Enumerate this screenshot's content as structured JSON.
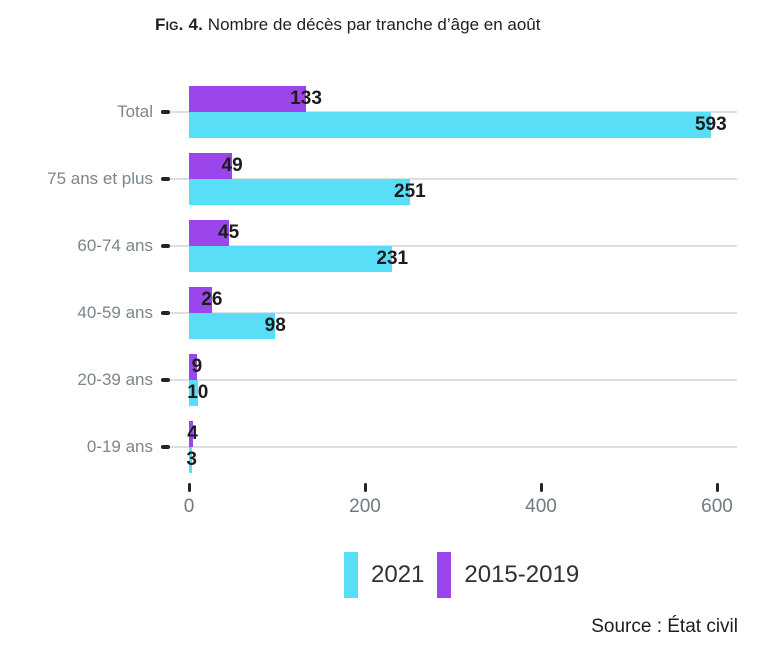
{
  "figure": {
    "title_prefix": "Fig. 4.",
    "title_text": " Nombre de décès par tranche d’âge en août",
    "source": "Source : État civil"
  },
  "legend": {
    "items": [
      {
        "label": "2021",
        "color": "#59DEF7"
      },
      {
        "label": "2015-2019",
        "color": "#9B45EC"
      }
    ]
  },
  "chart_data": {
    "type": "bar",
    "orientation": "horizontal",
    "title": "Fig. 4. Nombre de décès par tranche d’âge en août",
    "categories": [
      "Total",
      "75 ans et plus",
      "60-74 ans",
      "40-59 ans",
      "20-39 ans",
      "0-19 ans"
    ],
    "series": [
      {
        "name": "2015-2019",
        "color": "#9B45EC",
        "values": [
          133,
          49,
          45,
          26,
          9,
          4
        ]
      },
      {
        "name": "2021",
        "color": "#59DEF7",
        "values": [
          593,
          251,
          231,
          98,
          10,
          3
        ]
      }
    ],
    "x_ticks": [
      0,
      200,
      400,
      600
    ],
    "xlim": [
      0,
      600
    ],
    "grid": "category-center-lines",
    "value_labels": true,
    "legend_position": "bottom",
    "source": "Source : État civil"
  }
}
